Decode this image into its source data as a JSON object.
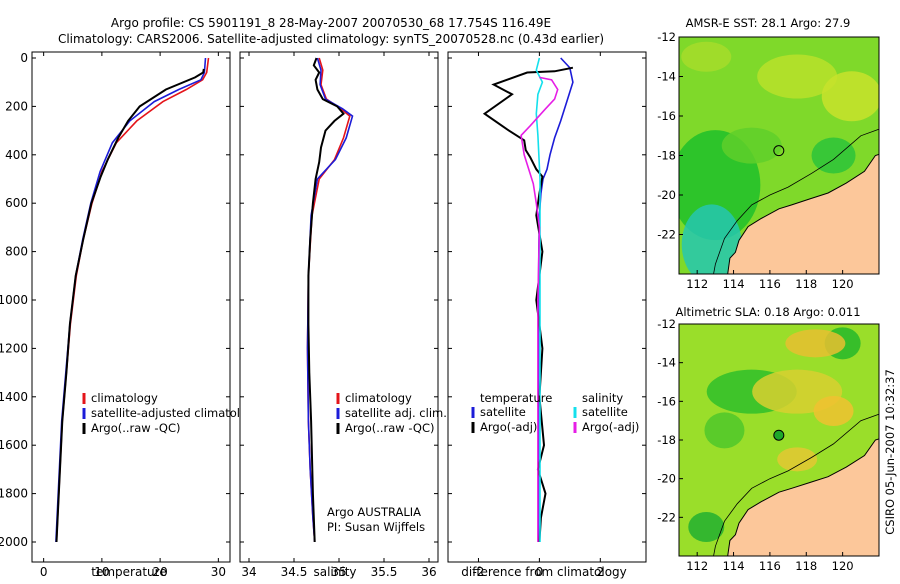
{
  "header": {
    "line1": "Argo profile: CS 5901191_8 28-May-2007 20070530_68 17.754S 116.49E",
    "line2": "Climatology: CARS2006. Satellite-adjusted climatology: synTS_20070528.nc (0.43d earlier)"
  },
  "footer": {
    "stamp": "CSIRO 05-Jun-2007 10:32:37"
  },
  "colors": {
    "red": "#e4141a",
    "blue": "#1c1cd8",
    "black": "#000000",
    "cyan": "#14e0ec",
    "magenta": "#e61ee6",
    "land": "#fcc79a",
    "ocean_low": "#26c7b0",
    "ocean_mid": "#1fbf2a",
    "ocean_high": "#f0c030"
  },
  "chart_data": [
    {
      "type": "line",
      "xlabel": "temperature",
      "ylabel": "",
      "xlim": [
        -2,
        32
      ],
      "ylim": [
        0,
        2050
      ],
      "y_reversed": true,
      "xticks": [
        0,
        10,
        20,
        30
      ],
      "yticks": [
        0,
        200,
        400,
        600,
        800,
        1000,
        1200,
        1400,
        1600,
        1800,
        2000
      ],
      "legend": [
        "climatology",
        "satellite-adjusted climatology",
        "Argo(..raw -QC)"
      ],
      "series": [
        {
          "name": "climatology",
          "color": "red",
          "x": [
            28.3,
            28.0,
            27.3,
            24.5,
            20.5,
            16.0,
            12.5,
            10.0,
            8.3,
            6.8,
            5.6,
            4.6,
            3.9,
            3.2,
            2.6,
            2.2
          ],
          "y": [
            0,
            60,
            90,
            130,
            180,
            260,
            350,
            470,
            600,
            750,
            900,
            1100,
            1300,
            1500,
            1800,
            2000
          ]
        },
        {
          "name": "satellite-adjusted climatology",
          "color": "blue",
          "x": [
            27.8,
            27.6,
            27.0,
            23.2,
            19.0,
            14.8,
            11.8,
            9.7,
            8.1,
            6.7,
            5.5,
            4.5,
            3.8,
            3.1,
            2.5,
            2.1
          ],
          "y": [
            0,
            60,
            90,
            130,
            180,
            260,
            350,
            470,
            600,
            750,
            900,
            1100,
            1300,
            1500,
            1800,
            2000
          ]
        },
        {
          "name": "Argo(..raw -QC)",
          "color": "black",
          "x": [
            27.5,
            27.4,
            26.0,
            21.0,
            16.5,
            14.5,
            12.8,
            11.0,
            9.8,
            8.2,
            6.8,
            5.5,
            4.5,
            3.9,
            3.2,
            2.6,
            2.2
          ],
          "y": [
            45,
            60,
            80,
            130,
            200,
            260,
            330,
            420,
            490,
            600,
            750,
            900,
            1100,
            1300,
            1500,
            1800,
            2000
          ]
        }
      ]
    },
    {
      "type": "line",
      "xlabel": "salinity",
      "ylabel": "",
      "xlim": [
        33.9,
        36.1
      ],
      "ylim": [
        0,
        2050
      ],
      "y_reversed": true,
      "xticks": [
        34,
        34.5,
        35,
        35.5,
        36
      ],
      "legend": [
        "climatology",
        "satellite adj. clim.",
        "Argo(..raw -QC)"
      ],
      "annotations": [
        "Argo AUSTRALIA",
        "PI: Susan Wijffels"
      ],
      "series": [
        {
          "name": "climatology",
          "color": "red",
          "x": [
            34.78,
            34.82,
            34.8,
            34.86,
            35.02,
            35.12,
            35.05,
            34.95,
            34.78,
            34.7,
            34.66,
            34.65,
            34.66,
            34.68,
            34.71,
            34.73
          ],
          "y": [
            0,
            50,
            110,
            170,
            210,
            240,
            330,
            420,
            500,
            650,
            900,
            1200,
            1500,
            1700,
            1900,
            2000
          ]
        },
        {
          "name": "satellite adj. clim.",
          "color": "blue",
          "x": [
            34.76,
            34.8,
            34.79,
            34.85,
            35.04,
            35.15,
            35.08,
            34.96,
            34.76,
            34.69,
            34.66,
            34.65,
            34.66,
            34.68,
            34.71,
            34.73
          ],
          "y": [
            0,
            50,
            110,
            170,
            210,
            240,
            330,
            420,
            500,
            650,
            900,
            1200,
            1500,
            1700,
            1900,
            2000
          ]
        },
        {
          "name": "Argo(..raw -QC)",
          "color": "black",
          "x": [
            34.75,
            34.72,
            34.78,
            34.74,
            34.76,
            34.82,
            34.98,
            35.05,
            34.95,
            34.85,
            34.8,
            34.78,
            34.74,
            34.71,
            34.68,
            34.66,
            34.66,
            34.67,
            34.69,
            34.71,
            34.73
          ],
          "y": [
            0,
            30,
            60,
            90,
            130,
            170,
            200,
            230,
            260,
            300,
            370,
            430,
            500,
            600,
            750,
            900,
            1100,
            1300,
            1500,
            1800,
            2000
          ]
        }
      ]
    },
    {
      "type": "line",
      "xlabel": "difference from climatology",
      "ylabel": "",
      "xlim": [
        -3,
        3.5
      ],
      "ylim": [
        0,
        2050
      ],
      "y_reversed": true,
      "xticks": [
        -2,
        0,
        2
      ],
      "legend": {
        "temperature_header": "temperature",
        "salinity_header": "salinity",
        "entries": [
          "satellite",
          "Argo(-adj)",
          "satellite",
          "Argo(-adj)"
        ]
      },
      "series": [
        {
          "name": "temperature satellite",
          "color": "blue",
          "x": [
            0.7,
            1.0,
            1.1,
            0.9,
            0.7,
            0.5,
            0.35,
            0.25,
            0.12,
            0.05,
            0.0,
            -0.02,
            -0.03,
            -0.03,
            -0.03,
            -0.03
          ],
          "y": [
            0,
            40,
            100,
            180,
            260,
            330,
            400,
            460,
            500,
            560,
            650,
            800,
            1000,
            1400,
            1800,
            2000
          ]
        },
        {
          "name": "temperature Argo(-adj)",
          "color": "black",
          "x": [
            1.1,
            0.5,
            -0.4,
            -1.5,
            -0.9,
            -1.8,
            -1.0,
            -0.5,
            -0.45,
            -0.3,
            -0.1,
            0.1,
            0.0,
            -0.1,
            0.1,
            -0.1,
            0.1,
            0.0,
            0.15,
            -0.05,
            0.2,
            0.05,
            0.0
          ],
          "y": [
            40,
            55,
            60,
            110,
            150,
            230,
            300,
            340,
            380,
            410,
            460,
            490,
            560,
            650,
            800,
            1000,
            1200,
            1400,
            1600,
            1700,
            1800,
            1900,
            2000
          ]
        },
        {
          "name": "salinity satellite",
          "color": "cyan",
          "x": [
            0.0,
            -0.1,
            0.1,
            -0.05,
            -0.1,
            -0.05,
            0.02,
            0.02,
            0.02,
            0.02
          ],
          "y": [
            0,
            50,
            100,
            150,
            230,
            320,
            500,
            1000,
            1500,
            2000
          ]
        },
        {
          "name": "salinity Argo(-adj)",
          "color": "magenta",
          "x": [
            0.0,
            0.4,
            0.6,
            0.5,
            0.2,
            -0.3,
            -0.6,
            -0.5,
            -0.2,
            -0.1,
            0.0,
            -0.05,
            -0.05,
            -0.05
          ],
          "y": [
            80,
            90,
            130,
            170,
            210,
            280,
            320,
            400,
            520,
            600,
            700,
            1000,
            1500,
            2000
          ]
        }
      ]
    },
    {
      "type": "heatmap",
      "title": "AMSR-E SST: 28.1 Argo: 27.9",
      "xlim": [
        111,
        122
      ],
      "ylim": [
        -24,
        -12
      ],
      "xticks": [
        112,
        114,
        116,
        118,
        120
      ],
      "yticks": [
        -12,
        -14,
        -16,
        -18,
        -20,
        -22
      ],
      "marker": {
        "lon": 116.49,
        "lat": -17.754
      }
    },
    {
      "type": "heatmap",
      "title": "Altimetric SLA: 0.18 Argo: 0.011",
      "xlim": [
        111,
        122
      ],
      "ylim": [
        -24,
        -12
      ],
      "xticks": [
        112,
        114,
        116,
        118,
        120
      ],
      "yticks": [
        -12,
        -14,
        -16,
        -18,
        -20,
        -22
      ],
      "marker": {
        "lon": 116.49,
        "lat": -17.754
      }
    }
  ]
}
